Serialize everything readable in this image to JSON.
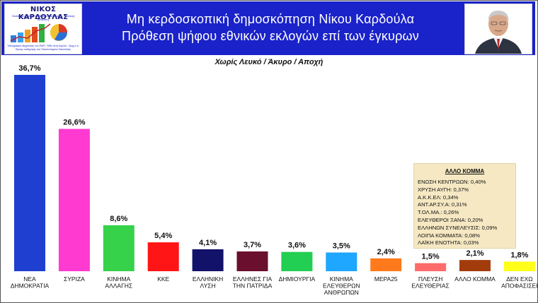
{
  "header": {
    "title_line1": "Μη κερδοσκοπική δημοσκόπηση  Νίκου  Καρδούλα",
    "title_line2": "Πρόθεση ψήφου εθνικών εκλογών επί των έγκυρων",
    "logo": {
      "name": "ΝΙΚΟΣ ΚΑΡΔΟΥΛΑΣ",
      "tagline": "Στατιστική έρευνα σε θέματα οικονομίας - Πολιτική Ανάλυση",
      "footer": "Τοπογράφος Μηχανικός του ΕΜΠ - MSc στην Αγγλία - Σμηχ.ε.α. Πρώην καθηγητής του Πανεπιστημίου Θεσσαλίας"
    }
  },
  "chart_data": {
    "type": "bar",
    "subtitle": "Χωρίς Λευκό / Άκυρο / Αποχή",
    "categories": [
      [
        "ΝΕΑ",
        "ΔΗΜΟΚΡΑΤΙΑ"
      ],
      [
        "ΣΥΡΙΖΑ"
      ],
      [
        "ΚΙΝΗΜΑ",
        "ΑΛΛΑΓΗΣ"
      ],
      [
        "ΚΚΕ"
      ],
      [
        "ΕΛΛΗΝΙΚΗ",
        "ΛΥΣΗ"
      ],
      [
        "ΕΛΛΗΝΕΣ ΓΙΑ",
        "ΤΗΝ ΠΑΤΡΙΔΑ"
      ],
      [
        "ΔΗΜΙΟΥΡΓΙΑ"
      ],
      [
        "ΚΙΝΗΜΑ",
        "ΕΛΕΥΘΕΡΩΝ",
        "ΑΝΘΡΩΠΩΝ"
      ],
      [
        "ΜΕΡΑ25"
      ],
      [
        "ΠΛΕΥΣΗ",
        "ΕΛΕΥΘΕΡΙΑΣ"
      ],
      [
        "ΑΛΛΟ ΚΟΜΜΑ"
      ],
      [
        "ΔΕΝ ΕΧΩ",
        "ΑΠΟΦΑΣΙΣΕΙ"
      ]
    ],
    "values": [
      36.7,
      26.6,
      8.6,
      5.4,
      4.1,
      3.7,
      3.6,
      3.5,
      2.4,
      1.5,
      2.1,
      1.8
    ],
    "value_labels": [
      "36,7%",
      "26,6%",
      "8,6%",
      "5,4%",
      "4,1%",
      "3,7%",
      "3,6%",
      "3,5%",
      "2,4%",
      "1,5%",
      "2,1%",
      "1,8%"
    ],
    "colors": [
      "#1f3fd1",
      "#ff3ad1",
      "#36d24a",
      "#ff1515",
      "#12126a",
      "#6b0f2e",
      "#22cf52",
      "#1fa6ff",
      "#ff7a1c",
      "#ff6a6a",
      "#a33c0c",
      "#ffff1a"
    ],
    "ylim": [
      0,
      40
    ],
    "grid": false,
    "legend": "none"
  },
  "other_parties": {
    "title": "ΑΛΛΟ ΚΟΜΜΑ",
    "items": [
      "ΕΝΩΣΗ ΚΕΝΤΡΩΩΝ: 0,40%",
      "ΧΡΥΣΗ ΑΥΓΗ: 0,37%",
      "Α.Κ.Κ.ΕΛ: 0,34%",
      "ΑΝΤ.ΑΡ.ΣΥ.Α: 0,31%",
      "Τ.ΟΛ.ΜΑ.: 0,26%",
      "ΕΛΕΥΘΕΡΟΙ ΞΑΝΑ: 0,20%",
      "ΕΛΛΗΝΩΝ ΣΥΝΕΛΕΥΣΙΣ: 0,09%",
      "ΛΟΙΠΑ ΚΟΜΜΑΤΑ: 0,08%",
      "ΛΑΪΚΗ ΕΝΟΤΗΤΑ: 0,03%"
    ]
  }
}
